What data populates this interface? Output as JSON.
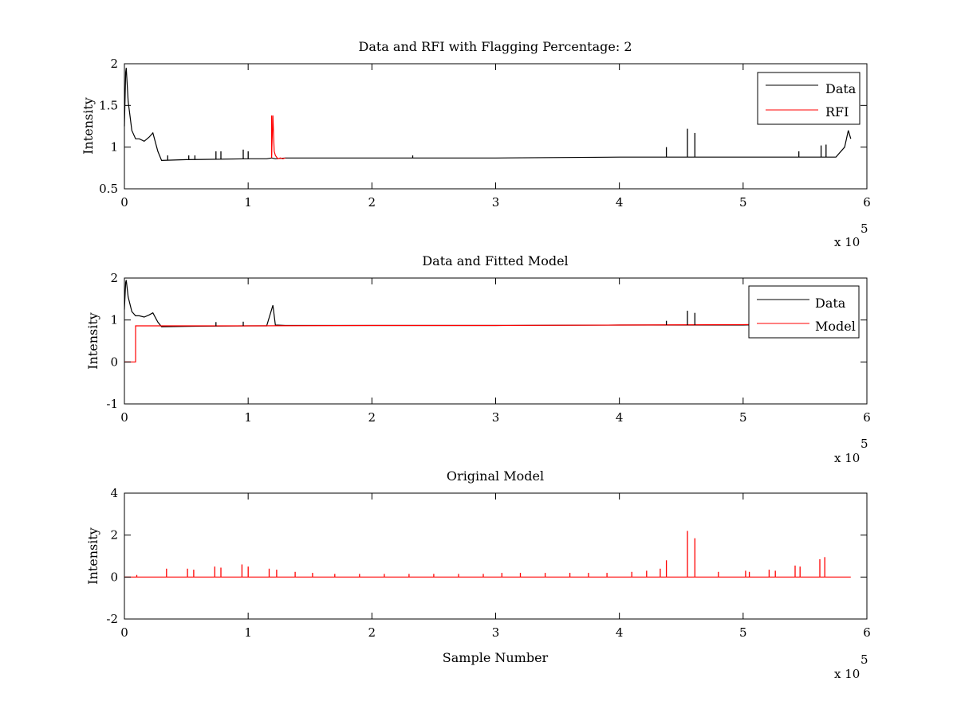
{
  "chart_data": [
    {
      "type": "line",
      "title": "Data and RFI with Flagging Percentage: 2",
      "xlabel": "",
      "ylabel": "Intensity",
      "xlim": [
        0,
        6
      ],
      "ylim": [
        0.5,
        2
      ],
      "x_ticks": [
        "0",
        "1",
        "2",
        "3",
        "4",
        "5",
        "6"
      ],
      "y_ticks": [
        "0.5",
        "1",
        "1.5",
        "2"
      ],
      "x_multiplier": "x 10",
      "x_multiplier_exp": "5",
      "grid": false,
      "legend_position": "top-right",
      "series": [
        {
          "name": "Data",
          "color": "#000000",
          "x": [
            0,
            0.01,
            0.015,
            0.03,
            0.06,
            0.09,
            0.12,
            0.16,
            0.2,
            0.23,
            0.27,
            0.3,
            0.5,
            1.0,
            1.15,
            1.19,
            1.22,
            1.3,
            2.0,
            3.0,
            4.0,
            4.5,
            5.0,
            5.5,
            5.75,
            5.82,
            5.85,
            5.87
          ],
          "values": [
            1.25,
            1.9,
            1.95,
            1.55,
            1.2,
            1.1,
            1.1,
            1.07,
            1.12,
            1.17,
            0.95,
            0.84,
            0.85,
            0.86,
            0.86,
            0.87,
            0.86,
            0.87,
            0.87,
            0.87,
            0.88,
            0.88,
            0.88,
            0.88,
            0.88,
            1.0,
            1.2,
            1.1
          ]
        },
        {
          "name": "RFI",
          "color": "#ff0000",
          "x": [
            1.19,
            1.2,
            1.21,
            1.22,
            1.24,
            1.26,
            1.28,
            1.3
          ],
          "values": [
            0.9,
            1.38,
            0.95,
            0.9,
            0.86,
            0.87,
            0.86,
            0.87
          ]
        }
      ],
      "spikes": {
        "x": [
          0.35,
          0.52,
          0.57,
          0.74,
          0.78,
          0.96,
          1.0,
          1.19,
          2.33,
          4.38,
          4.55,
          4.61,
          5.45,
          5.63,
          5.67
        ],
        "values": [
          0.9,
          0.9,
          0.9,
          0.95,
          0.95,
          0.97,
          0.95,
          1.38,
          0.9,
          1.0,
          1.22,
          1.17,
          0.95,
          1.02,
          1.03
        ]
      }
    },
    {
      "type": "line",
      "title": "Data and Fitted Model",
      "xlabel": "",
      "ylabel": "Intensity",
      "xlim": [
        0,
        6
      ],
      "ylim": [
        -1,
        2
      ],
      "x_ticks": [
        "0",
        "1",
        "2",
        "3",
        "4",
        "5",
        "6"
      ],
      "y_ticks": [
        "-1",
        "0",
        "1",
        "2"
      ],
      "x_multiplier": "x 10",
      "x_multiplier_exp": "5",
      "grid": false,
      "legend_position": "top-right",
      "series": [
        {
          "name": "Data",
          "color": "#000000",
          "x": [
            0,
            0.01,
            0.015,
            0.03,
            0.06,
            0.09,
            0.12,
            0.16,
            0.2,
            0.23,
            0.27,
            0.3,
            0.5,
            1.0,
            1.15,
            1.2,
            1.22,
            1.3,
            2.0,
            3.0,
            4.0,
            4.5,
            5.0,
            5.3
          ],
          "values": [
            1.25,
            1.9,
            1.95,
            1.55,
            1.2,
            1.1,
            1.1,
            1.07,
            1.12,
            1.17,
            0.95,
            0.84,
            0.85,
            0.86,
            0.86,
            1.35,
            0.88,
            0.87,
            0.87,
            0.87,
            0.88,
            0.88,
            0.88,
            0.9
          ]
        },
        {
          "name": "Model",
          "color": "#ff0000",
          "x": [
            0,
            0.09,
            0.09,
            1.0,
            2.0,
            3.0,
            4.0,
            5.0,
            5.3
          ],
          "values": [
            0,
            0,
            0.86,
            0.86,
            0.87,
            0.87,
            0.88,
            0.89,
            0.9
          ]
        }
      ],
      "spikes": {
        "x": [
          0.74,
          0.96,
          1.2,
          4.38,
          4.55,
          4.61
        ],
        "values": [
          0.95,
          0.96,
          1.35,
          0.98,
          1.22,
          1.17
        ]
      }
    },
    {
      "type": "line",
      "title": "Original Model",
      "xlabel": "Sample Number",
      "ylabel": "Intensity",
      "xlim": [
        0,
        6
      ],
      "ylim": [
        -2,
        4
      ],
      "x_ticks": [
        "0",
        "1",
        "2",
        "3",
        "4",
        "5",
        "6"
      ],
      "y_ticks": [
        "-2",
        "0",
        "2",
        "4"
      ],
      "x_multiplier": "x 10",
      "x_multiplier_exp": "5",
      "grid": false,
      "legend_position": "none",
      "series": [
        {
          "color": "#ff0000",
          "x": [
            0,
            5.87
          ],
          "values": [
            0,
            0
          ]
        }
      ],
      "spikes": {
        "x": [
          0.1,
          0.34,
          0.51,
          0.56,
          0.73,
          0.78,
          0.95,
          1.0,
          1.17,
          1.23,
          1.38,
          1.52,
          1.7,
          1.9,
          2.1,
          2.3,
          2.5,
          2.7,
          2.9,
          3.05,
          3.2,
          3.4,
          3.6,
          3.75,
          3.9,
          4.1,
          4.22,
          4.33,
          4.38,
          4.55,
          4.61,
          4.8,
          5.02,
          5.05,
          5.21,
          5.26,
          5.42,
          5.46,
          5.62,
          5.66
        ],
        "values": [
          0.1,
          0.4,
          0.4,
          0.35,
          0.5,
          0.45,
          0.6,
          0.5,
          0.4,
          0.35,
          0.25,
          0.2,
          0.15,
          0.15,
          0.15,
          0.15,
          0.15,
          0.15,
          0.15,
          0.2,
          0.2,
          0.2,
          0.2,
          0.2,
          0.2,
          0.25,
          0.3,
          0.4,
          0.8,
          2.2,
          1.85,
          0.25,
          0.3,
          0.25,
          0.35,
          0.3,
          0.55,
          0.5,
          0.85,
          0.95
        ]
      }
    }
  ]
}
